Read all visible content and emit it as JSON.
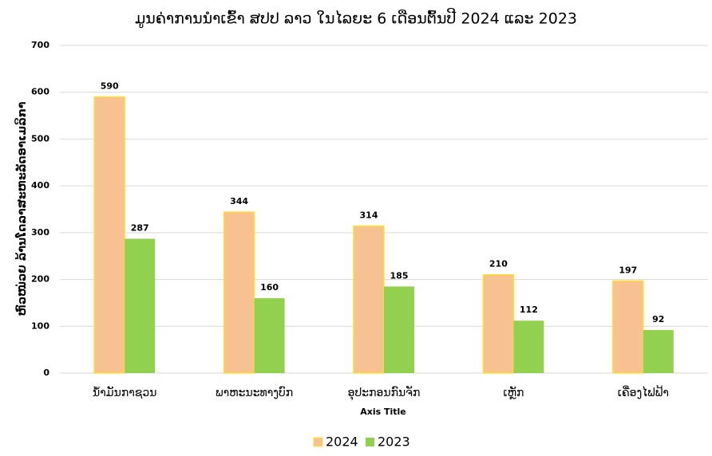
{
  "chart_data": {
    "type": "bar",
    "title": "ມູນຄ່າການນຳເຂົ້າ ສປປ ລາວ ໃນໄລຍະ 6 ເດືອນຕົ້ນປີ 2024 ແລະ 2023",
    "y_label": "ຫົວໜ່ວຍ ລ້ານໂດລາສະຫະລັດອາເມລິກາ",
    "x_label": "Axis Title",
    "categories": [
      "ນ້ຳມັນກາຊວນ",
      "ພາຫະນະທາງບົກ",
      "ອຸປະກອນກົນຈັກ",
      "ເຫຼັກ",
      "ເຄື່ອງໄຟຟ້າ"
    ],
    "series": [
      {
        "name": "2024",
        "color": "#f8c192",
        "edge": "#ffe030",
        "values": [
          590,
          344,
          314,
          210,
          197
        ]
      },
      {
        "name": "2023",
        "color": "#92d050",
        "values": [
          287,
          160,
          185,
          112,
          92
        ]
      }
    ],
    "ylim": [
      0,
      700
    ],
    "yticks": [
      0,
      100,
      200,
      300,
      400,
      500,
      600,
      700
    ],
    "grid": true,
    "legend": "bottom"
  }
}
